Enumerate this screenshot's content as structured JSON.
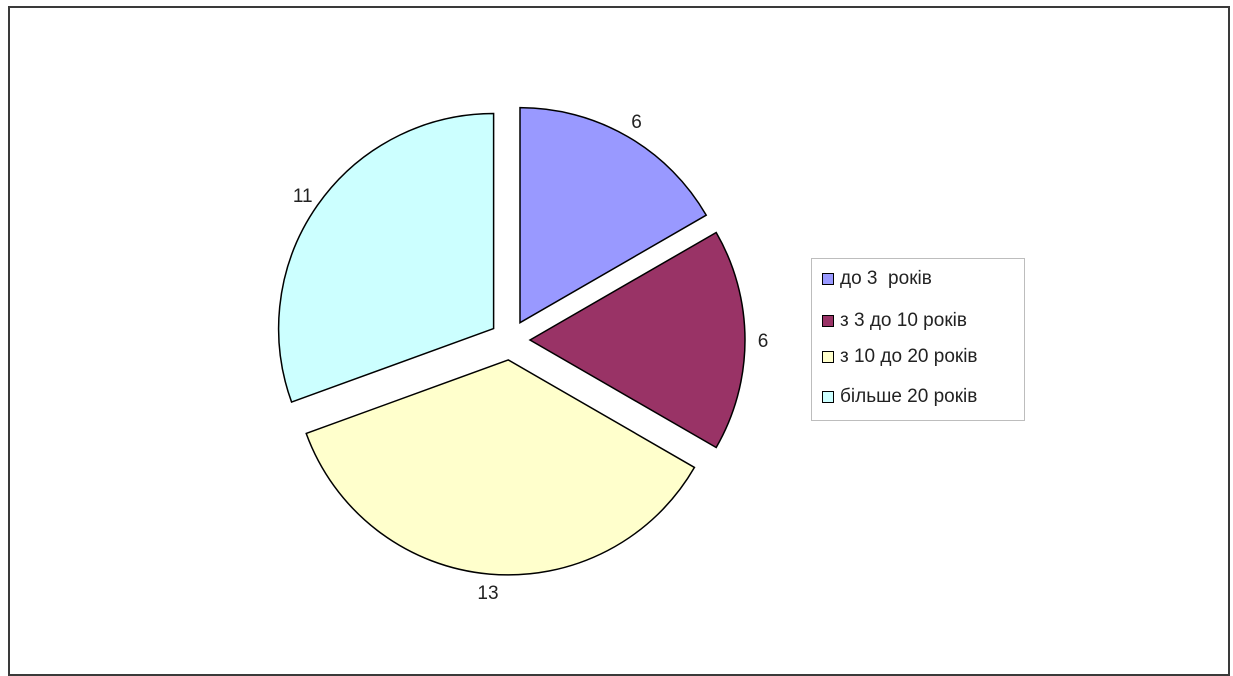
{
  "chart_data": {
    "type": "pie",
    "exploded": true,
    "categories": [
      "до 3  років",
      "з 3 до 10 років",
      "з 10 до 20 років",
      "більше 20 років"
    ],
    "values": [
      6,
      6,
      13,
      11
    ],
    "data_labels": [
      "6",
      "6",
      "13",
      "11"
    ],
    "colors": [
      "#9999ff",
      "#993366",
      "#ffffcc",
      "#ccffff"
    ],
    "legend_position": "right",
    "title": ""
  }
}
